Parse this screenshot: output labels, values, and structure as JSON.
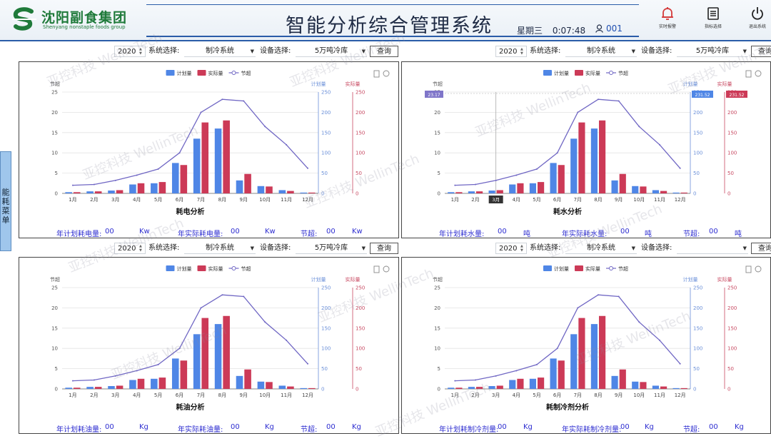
{
  "header": {
    "company_name": "沈阳副食集团",
    "company_name_en": "Shenyang nonstaple foods group",
    "title": "智能分析综合管理系统",
    "weekday": "星期三",
    "time": "0:07:48",
    "user_id": "001",
    "buttons": [
      {
        "label": "实时报警",
        "icon": "bell-icon"
      },
      {
        "label": "指标选择",
        "icon": "list-icon"
      },
      {
        "label": "退出系统",
        "icon": "power-icon"
      }
    ]
  },
  "side_menu": {
    "label": "能耗菜单"
  },
  "watermark": "亚控科技 WellinTech",
  "filters": {
    "year": "2020",
    "system_label": "系统选择:",
    "system_value": "制冷系统",
    "device_label": "设备选择:",
    "device_value": "5万吨冷库",
    "query_label": "查询"
  },
  "legend": {
    "plan": "计划量",
    "actual": "实际量",
    "save": "节超"
  },
  "axis_names": {
    "left": "节超",
    "right_plan": "计划量",
    "right_actual": "实际量"
  },
  "theme": {
    "plan": "#4f86e6",
    "actual": "#cc3a57",
    "save": "#7067c4"
  },
  "chart_data": [
    {
      "type": "bar",
      "title": "耗电分析",
      "categories": [
        "1月",
        "2月",
        "3月",
        "4月",
        "5月",
        "6月",
        "7月",
        "8月",
        "9月",
        "10月",
        "11月",
        "12月"
      ],
      "series": [
        {
          "name": "计划量",
          "axis": "right_plan",
          "values": [
            3,
            5,
            7,
            22,
            25,
            75,
            135,
            160,
            32,
            18,
            8,
            2
          ]
        },
        {
          "name": "实际量",
          "axis": "right_actual",
          "values": [
            3,
            5,
            8,
            25,
            28,
            70,
            175,
            180,
            48,
            17,
            6,
            2
          ]
        },
        {
          "name": "节超",
          "axis": "left",
          "type": "line",
          "values": [
            2,
            2.2,
            3.2,
            4.5,
            6,
            10,
            20,
            23.2,
            22.8,
            16.5,
            12,
            6.2
          ]
        }
      ],
      "ylim_left": [
        0,
        25
      ],
      "ylim_right": [
        0,
        250
      ],
      "left_ticks": [
        0,
        5,
        10,
        15,
        20,
        25
      ],
      "right_ticks": [
        0,
        50,
        100,
        150,
        200,
        250
      ],
      "footer": [
        {
          "label": "年计划耗电量:",
          "value": "00",
          "unit": "Kw"
        },
        {
          "label": "年实际耗电量:",
          "value": "00",
          "unit": "Kw"
        },
        {
          "label": "节超:",
          "value": "00",
          "unit": "Kw"
        }
      ]
    },
    {
      "type": "bar",
      "title": "耗水分析",
      "categories": [
        "1月",
        "2月",
        "3月",
        "4月",
        "5月",
        "6月",
        "7月",
        "8月",
        "9月",
        "10月",
        "11月",
        "12月"
      ],
      "series": [
        {
          "name": "计划量",
          "axis": "right_plan",
          "values": [
            3,
            5,
            7,
            22,
            25,
            75,
            135,
            160,
            32,
            18,
            8,
            2
          ]
        },
        {
          "name": "实际量",
          "axis": "right_actual",
          "values": [
            3,
            5,
            8,
            25,
            28,
            70,
            175,
            180,
            48,
            17,
            6,
            2
          ]
        },
        {
          "name": "节超",
          "axis": "left",
          "type": "line",
          "values": [
            2,
            2.2,
            3.2,
            4.5,
            6,
            10,
            20,
            23.2,
            22.8,
            16.5,
            12,
            6.2
          ]
        }
      ],
      "ylim_left": [
        0,
        25
      ],
      "ylim_right": [
        0,
        250
      ],
      "left_ticks": [
        0,
        5,
        10,
        15,
        20,
        25
      ],
      "right_ticks": [
        0,
        50,
        100,
        150,
        200,
        250
      ],
      "hover": {
        "category_index": 2,
        "label_x": "3月",
        "label_left": "23.17",
        "label_plan": "231.52",
        "label_actual": "231.52"
      },
      "footer": [
        {
          "label": "年计划耗水量:",
          "value": "00",
          "unit": "吨"
        },
        {
          "label": "年实际耗水量:",
          "value": "00",
          "unit": "吨"
        },
        {
          "label": "节超:",
          "value": "00",
          "unit": "吨"
        }
      ]
    },
    {
      "type": "bar",
      "title": "耗油分析",
      "categories": [
        "1月",
        "2月",
        "3月",
        "4月",
        "5月",
        "6月",
        "7月",
        "8月",
        "9月",
        "10月",
        "11月",
        "12月"
      ],
      "series": [
        {
          "name": "计划量",
          "axis": "right_plan",
          "values": [
            3,
            5,
            7,
            22,
            25,
            75,
            135,
            160,
            32,
            18,
            8,
            2
          ]
        },
        {
          "name": "实际量",
          "axis": "right_actual",
          "values": [
            3,
            5,
            8,
            25,
            28,
            70,
            175,
            180,
            48,
            17,
            6,
            2
          ]
        },
        {
          "name": "节超",
          "axis": "left",
          "type": "line",
          "values": [
            2,
            2.2,
            3.2,
            4.5,
            6,
            10,
            20,
            23.2,
            22.8,
            16.5,
            12,
            6.2
          ]
        }
      ],
      "ylim_left": [
        0,
        25
      ],
      "ylim_right": [
        0,
        250
      ],
      "left_ticks": [
        0,
        5,
        10,
        15,
        20,
        25
      ],
      "right_ticks": [
        0,
        50,
        100,
        150,
        200,
        250
      ],
      "footer": [
        {
          "label": "年计划耗油量:",
          "value": "00",
          "unit": "Kg"
        },
        {
          "label": "年实际耗油量:",
          "value": "00",
          "unit": "Kg"
        },
        {
          "label": "节超:",
          "value": "00",
          "unit": "Kg"
        }
      ]
    },
    {
      "type": "bar",
      "title": "耗制冷剂分析",
      "categories": [
        "1月",
        "2月",
        "3月",
        "4月",
        "5月",
        "6月",
        "7月",
        "8月",
        "9月",
        "10月",
        "11月",
        "12月"
      ],
      "series": [
        {
          "name": "计划量",
          "axis": "right_plan",
          "values": [
            3,
            5,
            7,
            22,
            25,
            75,
            135,
            160,
            32,
            18,
            8,
            2
          ]
        },
        {
          "name": "实际量",
          "axis": "right_actual",
          "values": [
            3,
            5,
            8,
            25,
            28,
            70,
            175,
            180,
            48,
            17,
            6,
            2
          ]
        },
        {
          "name": "节超",
          "axis": "left",
          "type": "line",
          "values": [
            2,
            2.2,
            3.2,
            4.5,
            6,
            10,
            20,
            23.2,
            22.8,
            16.5,
            12,
            6.2
          ]
        }
      ],
      "ylim_left": [
        0,
        25
      ],
      "ylim_right": [
        0,
        250
      ],
      "left_ticks": [
        0,
        5,
        10,
        15,
        20,
        25
      ],
      "right_ticks": [
        0,
        50,
        100,
        150,
        200,
        250
      ],
      "footer": [
        {
          "label": "年计划耗制冷剂量:",
          "value": "00",
          "unit": "Kg"
        },
        {
          "label": "年实际耗制冷剂量:",
          "value": "00",
          "unit": "Kg"
        },
        {
          "label": "节超:",
          "value": "00",
          "unit": "Kg"
        }
      ]
    }
  ]
}
